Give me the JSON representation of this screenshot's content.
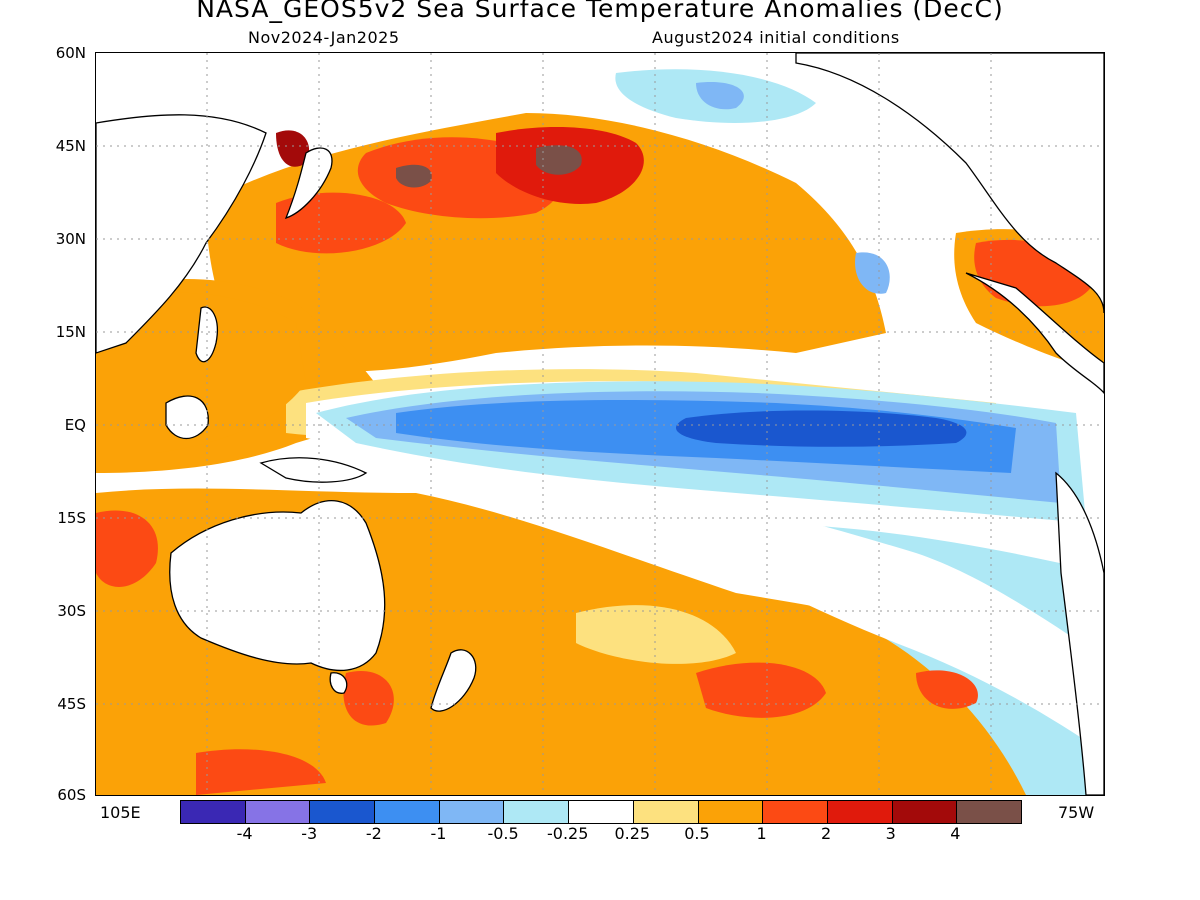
{
  "header": {
    "title": "NASA_GEOS5v2 Sea Surface Temperature Anomalies (DecC)",
    "period": "Nov2024-Jan2025",
    "init": "August2024 initial conditions"
  },
  "axes": {
    "lat_labels": [
      "60N",
      "45N",
      "30N",
      "15N",
      "EQ",
      "15S",
      "30S",
      "45S",
      "60S"
    ],
    "lon_left": "105E",
    "lon_right": "75W"
  },
  "legend": {
    "colors": [
      "#3a28b4",
      "#8673e6",
      "#1a57cf",
      "#3d8ff2",
      "#7fb7f5",
      "#aee8f5",
      "#ffffff",
      "#fde17f",
      "#fba207",
      "#fc4a14",
      "#e01a0c",
      "#a30a0a",
      "#7a5048"
    ],
    "labels": [
      "-4",
      "-3",
      "-2",
      "-1",
      "-0.5",
      "-0.25",
      "0.25",
      "0.5",
      "1",
      "2",
      "3",
      "4"
    ]
  },
  "map": {
    "cold_colors": [
      "#aee8f5",
      "#7fb7f5",
      "#3d8ff2",
      "#1a57cf"
    ],
    "warm_colors": [
      "#fde17f",
      "#fba207",
      "#fc4a14",
      "#e01a0c",
      "#a30a0a",
      "#7a5048"
    ]
  }
}
